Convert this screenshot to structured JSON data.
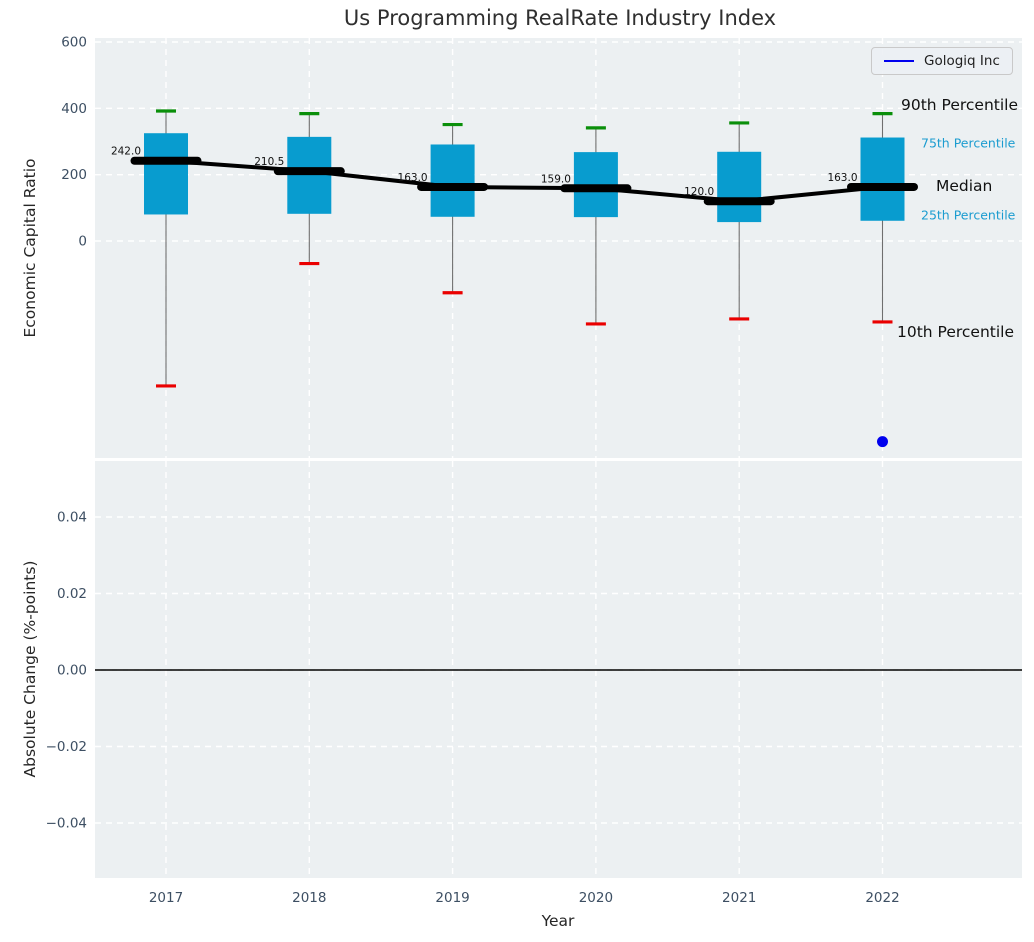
{
  "title": "Us Programming RealRate Industry Index",
  "legend": {
    "label": "Gologiq Inc",
    "line_color": "#0000ee"
  },
  "annotations": {
    "p90": "90th Percentile",
    "p75": "75th Percentile",
    "median": "Median",
    "p25": "25th Percentile",
    "p10": "10th Percentile"
  },
  "colors": {
    "panel_bg": "#ecf0f2",
    "grid": "#ffffff",
    "box_fill": "#089ccf",
    "whisker": "#6f6f6f",
    "cap_90": "#0a8f0a",
    "cap_10": "#ea0000",
    "median": "#000000",
    "company_blue": "#0000ee",
    "tick_text": "#3d4f63",
    "annotation_text": "#111111",
    "zero_line": "#000000"
  },
  "chart_data": {
    "type": "boxplot+line",
    "title": "Us Programming RealRate Industry Index",
    "xlabel": "Year",
    "categories": [
      "2017",
      "2018",
      "2019",
      "2020",
      "2021",
      "2022"
    ],
    "top_panel": {
      "ylabel": "Economic Capital Ratio",
      "yticks": [
        600,
        400,
        200,
        0
      ],
      "ytick_labels": [
        "600",
        "400",
        "200",
        "0"
      ],
      "ylim": [
        -655,
        612
      ],
      "grid": true,
      "boxes": [
        {
          "year": "2017",
          "p90": 392,
          "p75": 325,
          "median": 242.0,
          "p25": 80,
          "p10": -437,
          "label": "242.0"
        },
        {
          "year": "2018",
          "p90": 384,
          "p75": 314,
          "median": 210.5,
          "p25": 82,
          "p10": -68,
          "label": "210.5"
        },
        {
          "year": "2019",
          "p90": 351,
          "p75": 291,
          "median": 163.0,
          "p25": 73,
          "p10": -156,
          "label": "163.0"
        },
        {
          "year": "2020",
          "p90": 341,
          "p75": 268,
          "median": 159.0,
          "p25": 72,
          "p10": -250,
          "label": "159.0"
        },
        {
          "year": "2021",
          "p90": 356,
          "p75": 269,
          "median": 120.0,
          "p25": 57,
          "p10": -235,
          "label": "120.0"
        },
        {
          "year": "2022",
          "p90": 384,
          "p75": 312,
          "median": 163.0,
          "p25": 61,
          "p10": -244,
          "label": "163.0"
        }
      ],
      "median_trend": [
        242.0,
        210.5,
        163.0,
        159.0,
        120.0,
        163.0
      ],
      "company_series": {
        "name": "Gologiq Inc",
        "points": [
          {
            "year": "2022",
            "value": -605
          }
        ]
      }
    },
    "bottom_panel": {
      "ylabel": "Absolute Change (%-points)",
      "yticks": [
        0.04,
        0.02,
        0.0,
        -0.02,
        -0.04
      ],
      "ytick_labels": [
        "0.04",
        "0.02",
        "0.00",
        "−0.02",
        "−0.04"
      ],
      "ylim": [
        -0.0545,
        0.0546
      ],
      "grid": true,
      "zero_line": 0.0,
      "series": []
    }
  }
}
